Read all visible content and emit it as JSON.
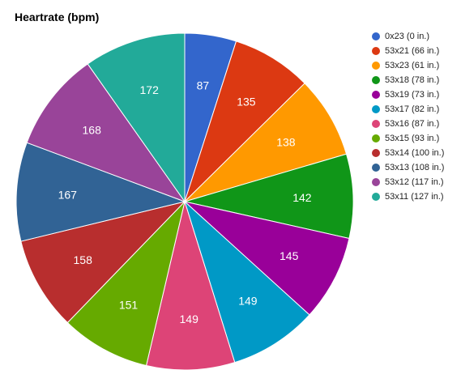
{
  "chart_data": {
    "type": "pie",
    "title": "Heartrate (bpm)",
    "legend_position": "right",
    "slices": [
      {
        "label": "0x23 (0 in.)",
        "value": 87,
        "color": "#3366cc"
      },
      {
        "label": "53x21 (66 in.)",
        "value": 135,
        "color": "#dc3912"
      },
      {
        "label": "53x23 (61 in.)",
        "value": 138,
        "color": "#ff9900"
      },
      {
        "label": "53x18 (78 in.)",
        "value": 142,
        "color": "#109618"
      },
      {
        "label": "53x19 (73 in.)",
        "value": 145,
        "color": "#990099"
      },
      {
        "label": "53x17 (82 in.)",
        "value": 149,
        "color": "#0099c6"
      },
      {
        "label": "53x16 (87 in.)",
        "value": 149,
        "color": "#dd4477"
      },
      {
        "label": "53x15 (93 in.)",
        "value": 151,
        "color": "#66aa00"
      },
      {
        "label": "53x14 (100 in.)",
        "value": 158,
        "color": "#b82e2e"
      },
      {
        "label": "53x13 (108 in.)",
        "value": 167,
        "color": "#316395"
      },
      {
        "label": "53x12 (117 in.)",
        "value": 168,
        "color": "#994499"
      },
      {
        "label": "53x11 (127 in.)",
        "value": 172,
        "color": "#22aa99"
      }
    ]
  }
}
